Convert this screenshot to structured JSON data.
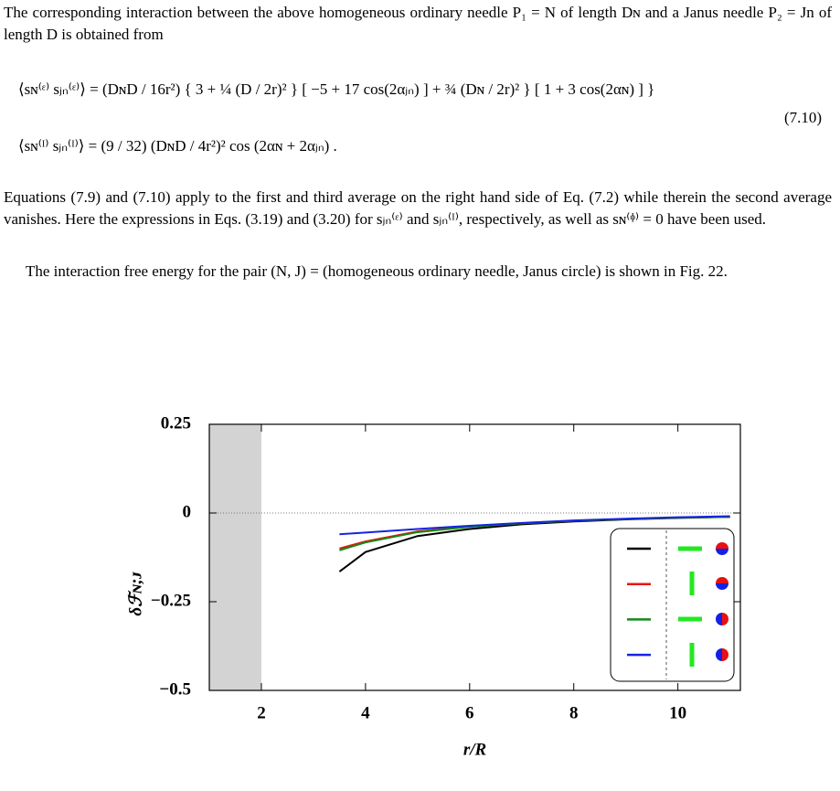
{
  "page": {
    "paragraphs": [
      "The corresponding interaction between the above homogeneous ordinary needle P₁ = N of length Dɴ and a Janus needle P₂ = Jn of length D is obtained from",
      "Equations (7.9) and (7.10) apply to the first and third average on the right hand side of Eq. (7.2) while therein the second average vanishes. Here the expressions in Eqs. (3.19) and (3.20) for sⱼₙ⁽ᵋ⁾ and sⱼₙ⁽ᴵ⁾, respectively, as well as sɴ⁽ᶲ⁾ = 0 have been used.",
      "The interaction free energy for the pair (N, J) = (homogeneous ordinary needle, Janus circle) is shown in Fig. 22."
    ],
    "equations": [
      "⟨sɴ⁽ᵋ⁾ sⱼₙ⁽ᵋ⁾⟩ = (DɴD / 16r²) { 3 + ¼ (D / 2r)² } [ −5 + 17 cos(2αⱼₙ) ] + ¾ (Dɴ / 2r)² } [ 1 + 3 cos(2αɴ) ] }",
      "⟨sɴ⁽ᴵ⁾ sⱼₙ⁽ᴵ⁾⟩ = (9 / 32) (DɴD / 4r²)² cos (2αɴ + 2αⱼₙ) ."
    ],
    "equation_number": "(7.10)"
  },
  "chart_data": {
    "type": "line",
    "x_label": "r/R",
    "y_label": "δℱɴ;ᴊ",
    "x": [
      3.5,
      4,
      5,
      6,
      7,
      8,
      9,
      10,
      11
    ],
    "series": [
      {
        "color": "#000000",
        "values": [
          -0.165,
          -0.11,
          -0.065,
          -0.045,
          -0.032,
          -0.024,
          -0.018,
          -0.014,
          -0.011
        ]
      },
      {
        "color": "#e8160c",
        "values": [
          -0.1,
          -0.08,
          -0.052,
          -0.038,
          -0.029,
          -0.022,
          -0.017,
          -0.013,
          -0.011
        ]
      },
      {
        "color": "#0f8a16",
        "values": [
          -0.105,
          -0.083,
          -0.054,
          -0.039,
          -0.029,
          -0.022,
          -0.017,
          -0.013,
          -0.011
        ]
      },
      {
        "color": "#1424e0",
        "values": [
          -0.06,
          -0.055,
          -0.045,
          -0.036,
          -0.028,
          -0.021,
          -0.016,
          -0.012,
          -0.009
        ]
      }
    ],
    "xlim": [
      1,
      11.2
    ],
    "ylim": [
      -0.5,
      0.25
    ],
    "xticks": [
      2,
      4,
      6,
      8,
      10
    ],
    "yticks": [
      0.25,
      0,
      {
        "value": -0.25,
        "label": "−0.25"
      },
      {
        "value": -0.5,
        "label": "−0.5"
      }
    ],
    "shaded_xrange": [
      1,
      2
    ],
    "zero_line": true
  }
}
